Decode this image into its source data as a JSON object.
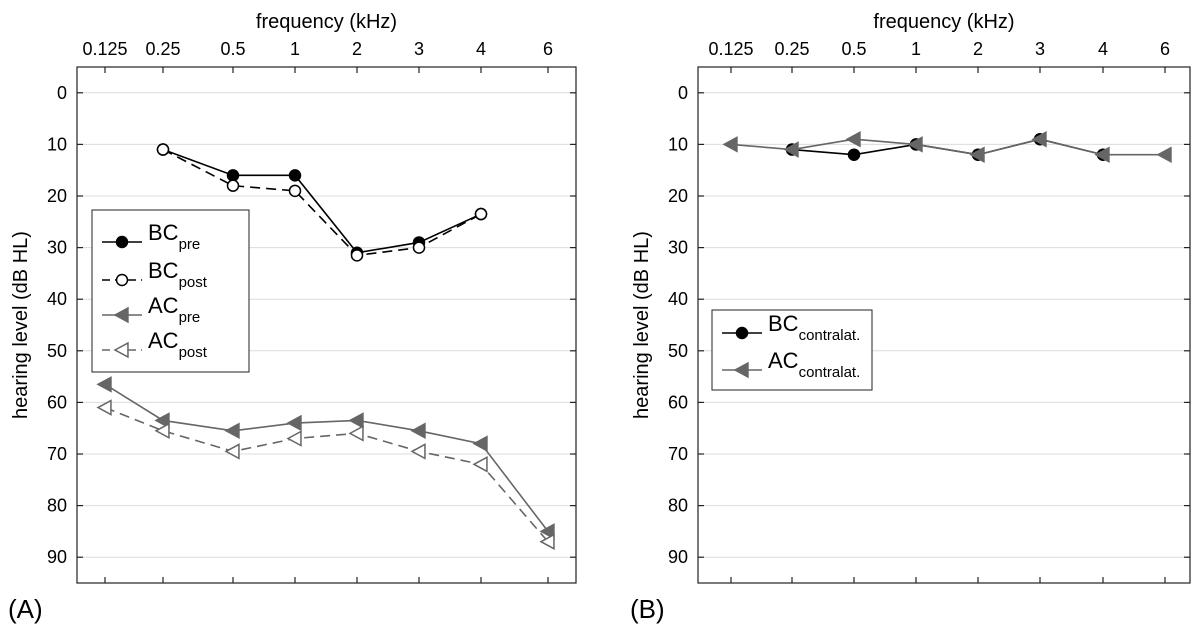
{
  "chart_data": [
    {
      "type": "line",
      "panel_label": "(A)",
      "xlabel": "frequency (kHz)",
      "ylabel": "hearing level (dB HL)",
      "x_ticks": [
        "0.125",
        "0.25",
        "0.5",
        "1",
        "2",
        "3",
        "4",
        "6"
      ],
      "y_ticks": [
        0,
        10,
        20,
        30,
        40,
        50,
        60,
        70,
        80,
        90
      ],
      "ylim": [
        -5,
        95
      ],
      "y_inverted": true,
      "x_axis_position": "top",
      "grid": "horizontal",
      "legend_position": "left-middle",
      "series": [
        {
          "name": "BC",
          "sub": "pre",
          "color": "#000000",
          "dash": "",
          "marker": "circle-filled",
          "points": [
            [
              0.25,
              11
            ],
            [
              0.5,
              16
            ],
            [
              1,
              16
            ],
            [
              2,
              31
            ],
            [
              3,
              29
            ],
            [
              4,
              23.5
            ]
          ]
        },
        {
          "name": "BC",
          "sub": "post",
          "color": "#000000",
          "dash": "10,6",
          "marker": "circle-open",
          "points": [
            [
              0.25,
              11
            ],
            [
              0.5,
              18
            ],
            [
              1,
              19
            ],
            [
              2,
              31.5
            ],
            [
              3,
              30
            ],
            [
              4,
              23.5
            ]
          ]
        },
        {
          "name": "AC",
          "sub": "pre",
          "color": "#666666",
          "dash": "",
          "marker": "triangle-filled",
          "points": [
            [
              0.125,
              56.5
            ],
            [
              0.25,
              63.5
            ],
            [
              0.5,
              65.5
            ],
            [
              1,
              64
            ],
            [
              2,
              63.5
            ],
            [
              3,
              65.5
            ],
            [
              4,
              68
            ],
            [
              6,
              85
            ]
          ]
        },
        {
          "name": "AC",
          "sub": "post",
          "color": "#666666",
          "dash": "10,6",
          "marker": "triangle-open",
          "points": [
            [
              0.125,
              61
            ],
            [
              0.25,
              65.5
            ],
            [
              0.5,
              69.5
            ],
            [
              1,
              67
            ],
            [
              2,
              66
            ],
            [
              3,
              69.5
            ],
            [
              4,
              72
            ],
            [
              6,
              87
            ]
          ]
        }
      ]
    },
    {
      "type": "line",
      "panel_label": "(B)",
      "xlabel": "frequency (kHz)",
      "ylabel": "hearing level (dB HL)",
      "x_ticks": [
        "0.125",
        "0.25",
        "0.5",
        "1",
        "2",
        "3",
        "4",
        "6"
      ],
      "y_ticks": [
        0,
        10,
        20,
        30,
        40,
        50,
        60,
        70,
        80,
        90
      ],
      "ylim": [
        -5,
        95
      ],
      "y_inverted": true,
      "x_axis_position": "top",
      "grid": "horizontal",
      "legend_position": "left-middle",
      "series": [
        {
          "name": "BC",
          "sub": "contralat.",
          "color": "#000000",
          "dash": "",
          "marker": "circle-filled",
          "points": [
            [
              0.25,
              11
            ],
            [
              0.5,
              12
            ],
            [
              1,
              10
            ],
            [
              2,
              12
            ],
            [
              3,
              9
            ],
            [
              4,
              12
            ]
          ]
        },
        {
          "name": "AC",
          "sub": "contralat.",
          "color": "#666666",
          "dash": "",
          "marker": "triangle-filled",
          "points": [
            [
              0.125,
              10
            ],
            [
              0.25,
              11
            ],
            [
              0.5,
              9
            ],
            [
              1,
              10
            ],
            [
              2,
              12
            ],
            [
              3,
              9
            ],
            [
              4,
              12
            ],
            [
              6,
              12
            ]
          ]
        }
      ]
    }
  ]
}
